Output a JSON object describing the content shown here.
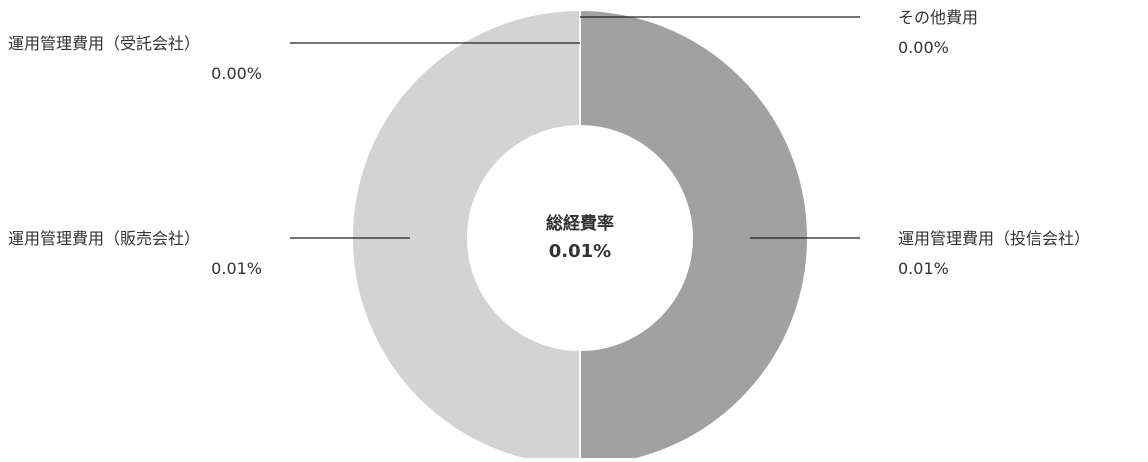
{
  "chart_data": {
    "type": "pie",
    "variant": "donut",
    "center_label": {
      "title": "総経費率",
      "value": "0.01%"
    },
    "slices": [
      {
        "label": "その他費用",
        "value_label": "0.00%",
        "value": 0.0,
        "color": "#a0a1a0",
        "side": "right"
      },
      {
        "label": "運用管理費用（投信会社）",
        "value_label": "0.01%",
        "value": 0.01,
        "color": "#a0a1a0",
        "side": "right"
      },
      {
        "label": "運用管理費用（販売会社）",
        "value_label": "0.01%",
        "value": 0.01,
        "color": "#d3d3d3",
        "side": "left"
      },
      {
        "label": "運用管理費用（受託会社）",
        "value_label": "0.00%",
        "value": 0.0,
        "color": "#d3d3d3",
        "side": "left"
      }
    ],
    "colors": {
      "leader_line": "#222222",
      "slice_border": "#ffffff",
      "text": "#333333"
    }
  }
}
